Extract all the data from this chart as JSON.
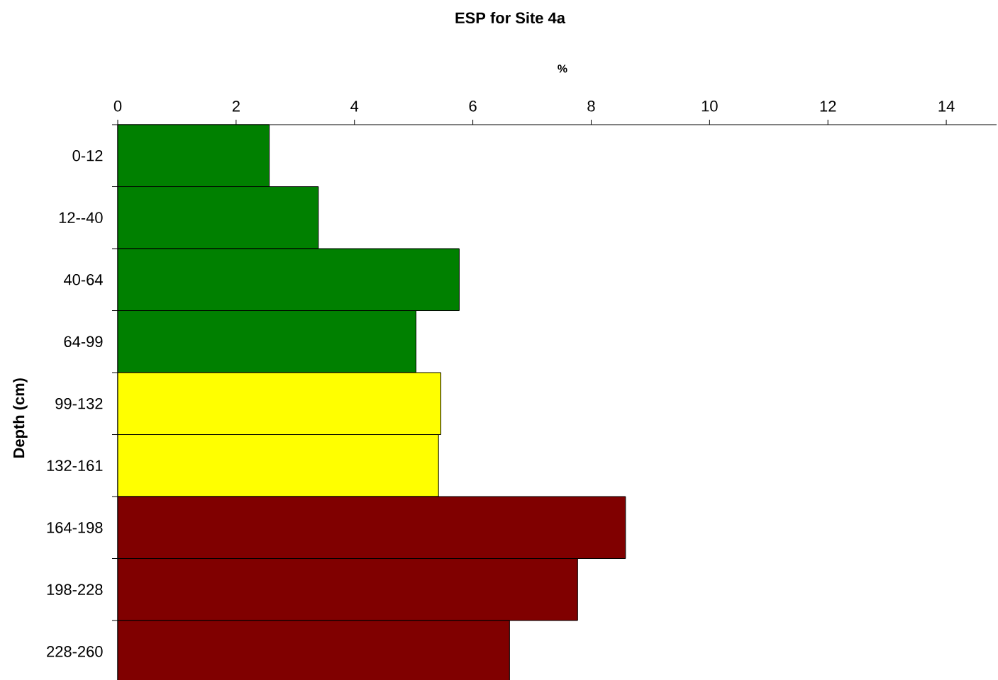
{
  "chart_data": {
    "type": "bar",
    "orientation": "horizontal",
    "title": "ESP for Site 4a",
    "xlabel": "%",
    "ylabel": "Depth (cm)",
    "categories": [
      "0-12",
      "12--40",
      "40-64",
      "64-99",
      "99-132",
      "132-161",
      "164-198",
      "198-228",
      "228-260"
    ],
    "values": [
      2.56,
      3.39,
      5.77,
      5.04,
      5.46,
      5.42,
      8.58,
      7.77,
      6.62
    ],
    "colors": [
      "#008000",
      "#008000",
      "#008000",
      "#008000",
      "#ffff00",
      "#ffff00",
      "#800000",
      "#800000",
      "#800000"
    ],
    "xlim": [
      0,
      14.85
    ],
    "xticks": [
      0,
      2,
      4,
      6,
      8,
      10,
      12,
      14
    ]
  }
}
